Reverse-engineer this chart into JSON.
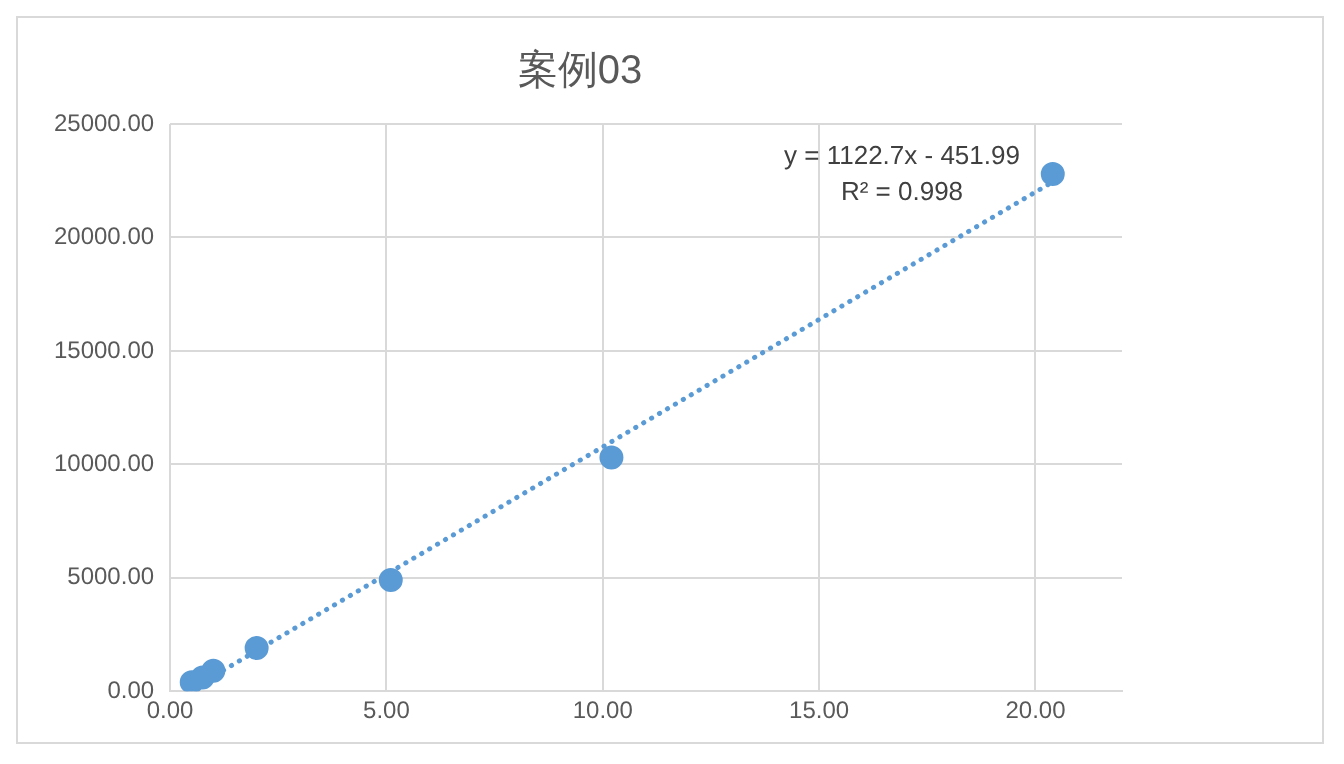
{
  "chart_data": {
    "type": "scatter",
    "title": "案例03",
    "x": [
      0.5,
      0.75,
      1,
      2,
      5.1,
      10.2,
      20.4
    ],
    "series": [
      {
        "color": "#5b9bd5",
        "values": [
          400,
          600,
          900,
          1900,
          4900,
          10300,
          22800
        ],
        "marker": "circle"
      },
      {
        "type": "line",
        "color": "#5b9bd5",
        "x": [
          0.5,
          20.4
        ],
        "values": [
          100,
          22450
        ],
        "line_style": "dotted",
        "marker": "none"
      }
    ],
    "xlim": [
      0,
      22
    ],
    "xticks": [
      {
        "value": 0,
        "label": "0.00"
      },
      {
        "value": 5,
        "label": "5.00"
      },
      {
        "value": 10,
        "label": "10.00"
      },
      {
        "value": 15,
        "label": "15.00"
      },
      {
        "value": 20,
        "label": "20.00"
      }
    ],
    "ylim": [
      0,
      25000
    ],
    "yticks": [
      {
        "value": 0,
        "label": "0.00"
      },
      {
        "value": 5000,
        "label": "5000.00"
      },
      {
        "value": 10000,
        "label": "10000.00"
      },
      {
        "value": 15000,
        "label": "15000.00"
      },
      {
        "value": 20000,
        "label": "20000.00"
      },
      {
        "value": 25000,
        "label": "25000.00"
      }
    ],
    "grid": true,
    "annotations": [
      "y = 1122.7x - 451.99",
      "R² = 0.998"
    ]
  }
}
